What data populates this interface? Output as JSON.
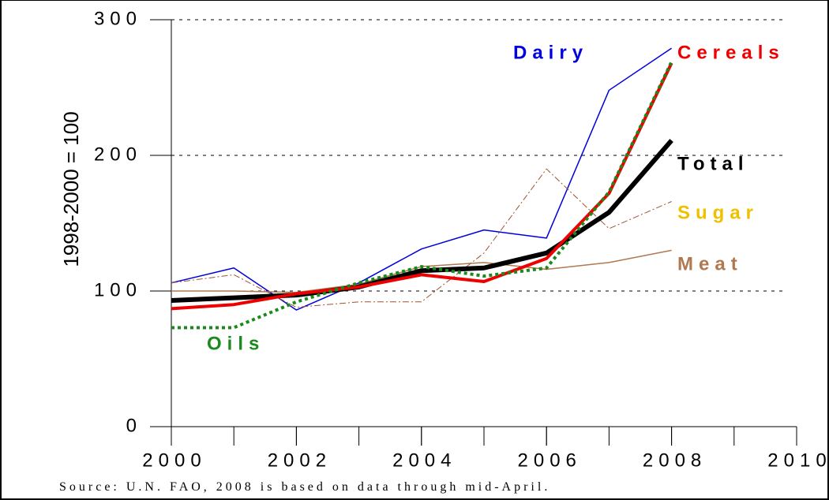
{
  "chart_data": {
    "type": "line",
    "y_label": "1998-2000 = 100",
    "source": "Source: U.N. FAO, 2008 is based on data through mid-April.",
    "x": [
      2000,
      2001,
      2002,
      2003,
      2004,
      2005,
      2006,
      2007,
      2008
    ],
    "xlim": [
      2000,
      2010
    ],
    "xticks": [
      2000,
      2002,
      2004,
      2006,
      2008,
      2010
    ],
    "ylim": [
      0,
      300
    ],
    "yticks": [
      0,
      100,
      200,
      300
    ],
    "grid": true,
    "series": [
      {
        "name": "Dairy",
        "color": "#0000dd",
        "label_color": "#0000dd",
        "style": "solid",
        "width": 1.5,
        "values": [
          106,
          117,
          86,
          106,
          131,
          145,
          139,
          248,
          279
        ]
      },
      {
        "name": "Meat",
        "color": "#b07850",
        "label_color": "#b07850",
        "style": "solid",
        "width": 1.5,
        "values": [
          100,
          100,
          99,
          105,
          118,
          121,
          116,
          121,
          130
        ]
      },
      {
        "name": "Sugar",
        "color": "#a0522d",
        "label_color": "#f0c000",
        "style": "dashdot",
        "width": 1,
        "values": [
          106,
          112,
          88,
          92,
          92,
          128,
          190,
          146,
          166
        ]
      },
      {
        "name": "Total",
        "color": "#000000",
        "label_color": "#000000",
        "style": "solid",
        "width": 6,
        "values": [
          93,
          95,
          97,
          103,
          115,
          117,
          128,
          158,
          211
        ]
      },
      {
        "name": "Cereals",
        "color": "#ee0000",
        "label_color": "#ee0000",
        "style": "solid",
        "width": 4,
        "values": [
          87,
          90,
          98,
          103,
          112,
          107,
          124,
          172,
          268
        ]
      },
      {
        "name": "Oils",
        "color": "#1a8a1a",
        "label_color": "#1a8a1a",
        "style": "dotted",
        "width": 4,
        "values": [
          73,
          73,
          92,
          106,
          118,
          111,
          117,
          173,
          269
        ]
      }
    ]
  }
}
